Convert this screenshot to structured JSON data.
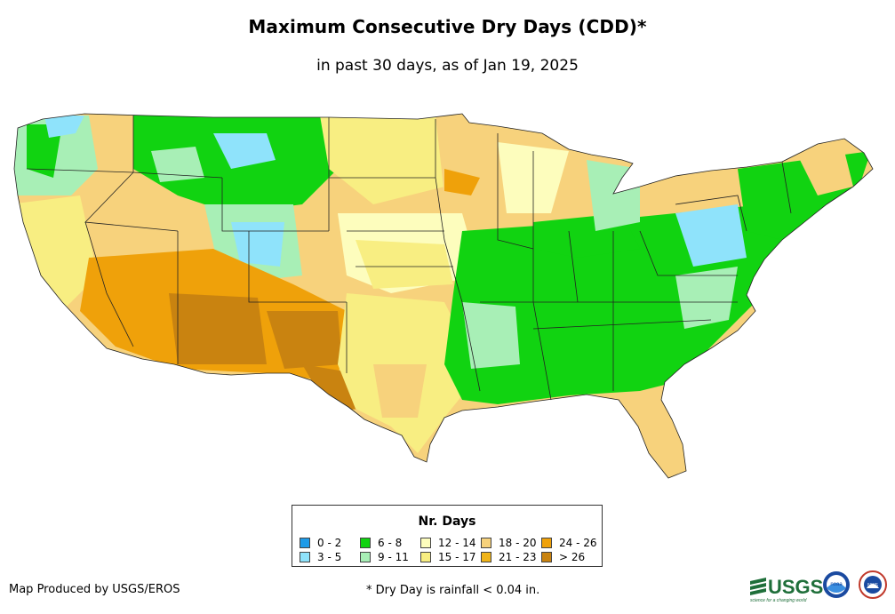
{
  "title": "Maximum Consecutive Dry Days (CDD)*",
  "subtitle": "in past 30 days, as of Jan 19, 2025",
  "legend": {
    "title": "Nr. Days",
    "items": [
      {
        "label": "0 - 2",
        "color": "#1e9be8"
      },
      {
        "label": "3 - 5",
        "color": "#8fe3fb"
      },
      {
        "label": "6 - 8",
        "color": "#11d311"
      },
      {
        "label": "9 - 11",
        "color": "#a8efb6"
      },
      {
        "label": "12 - 14",
        "color": "#fdfdbd"
      },
      {
        "label": "15 - 17",
        "color": "#f8ee82"
      },
      {
        "label": "18 - 20",
        "color": "#f7d27c"
      },
      {
        "label": "21 - 23",
        "color": "#f0b418"
      },
      {
        "label": "24 - 26",
        "color": "#efa10a"
      },
      {
        "label": "> 26",
        "color": "#c98310"
      }
    ]
  },
  "footer": {
    "producer": "Map Produced by USGS/EROS",
    "note": "* Dry Day is rainfall < 0.04 in."
  },
  "logos": {
    "usgs_label": "USGS",
    "usgs_tagline": "science for a changing world",
    "noaa_label": "noaa",
    "nws_label": "NWS"
  }
}
